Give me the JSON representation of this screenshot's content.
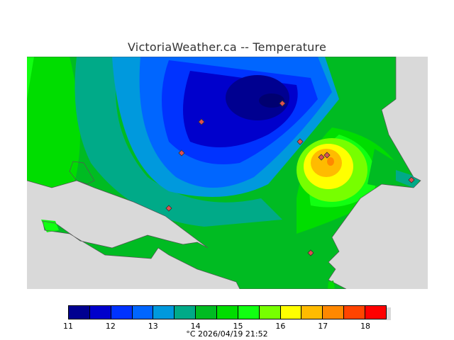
{
  "title": "VictoriaWeather.ca -- Temperature",
  "legend": {
    "ticks": [
      "11",
      "12",
      "13",
      "14",
      "15",
      "16",
      "17",
      "18"
    ],
    "unit": "°C",
    "timestamp": "2026/04/19 21:52",
    "colors": [
      "#000090",
      "#0000cc",
      "#0033ff",
      "#0066ff",
      "#0099dd",
      "#00aa88",
      "#00bb22",
      "#00dd00",
      "#11ff11",
      "#77ff00",
      "#ffff00",
      "#ffbb00",
      "#ff8800",
      "#ff4400",
      "#ff0000"
    ]
  },
  "map": {
    "background_color": "#d9d9d9",
    "station_color": "#e05050"
  }
}
